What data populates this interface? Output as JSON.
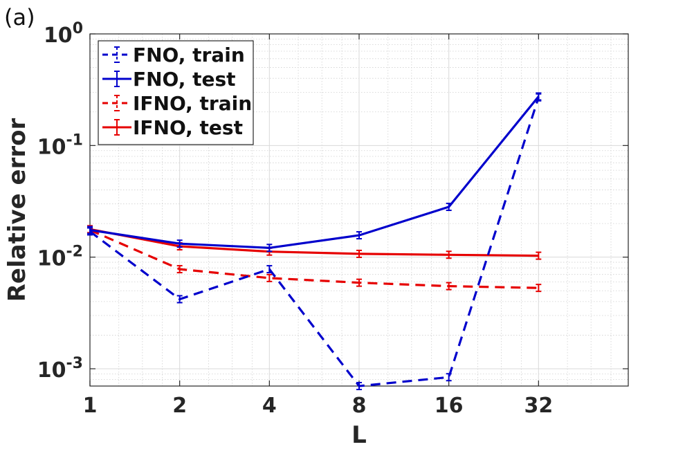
{
  "panel_label": "(a)",
  "chart_data": {
    "type": "line",
    "xlabel": "L",
    "ylabel": "Relative error",
    "x_scale": "log2",
    "y_scale": "log10",
    "x": [
      1,
      2,
      4,
      8,
      16,
      32
    ],
    "x_ticks": [
      "1",
      "2",
      "4",
      "8",
      "16",
      "32"
    ],
    "y_ticks": [
      {
        "base": "10",
        "exp": "0",
        "value": 1
      },
      {
        "base": "10",
        "exp": "-1",
        "value": 0.1
      },
      {
        "base": "10",
        "exp": "-2",
        "value": 0.01
      },
      {
        "base": "10",
        "exp": "-3",
        "value": 0.001
      }
    ],
    "ylim": [
      0.0007,
      1
    ],
    "xlim": [
      1,
      64
    ],
    "grid": true,
    "legend_position": "top-left",
    "series": [
      {
        "name": "FNO, train",
        "color": "#0000cc",
        "dash": "dashed",
        "values": [
          0.017,
          0.0042,
          0.0078,
          0.0007,
          0.00084,
          0.27
        ]
      },
      {
        "name": "FNO, test",
        "color": "#0000cc",
        "dash": "solid",
        "values": [
          0.0175,
          0.0132,
          0.0121,
          0.0157,
          0.0282,
          0.275
        ]
      },
      {
        "name": "IFNO, train",
        "color": "#e60000",
        "dash": "dashed",
        "values": [
          0.0175,
          0.0078,
          0.0065,
          0.0059,
          0.0055,
          0.0053
        ]
      },
      {
        "name": "IFNO, test",
        "color": "#e60000",
        "dash": "solid",
        "values": [
          0.0178,
          0.0125,
          0.0112,
          0.0107,
          0.0105,
          0.0103
        ]
      }
    ]
  }
}
